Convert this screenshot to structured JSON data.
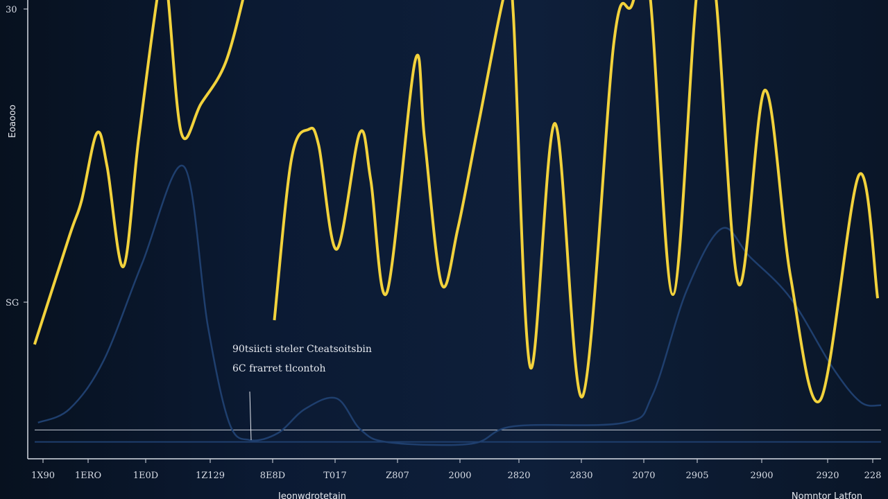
{
  "chart_data": {
    "type": "line",
    "title": "",
    "xlabel": "Jeonwdrotetain",
    "ylabel": "Eoaooo",
    "secondary_label": "Nomntor Latfon",
    "y_tick_labels": [
      "30",
      "SG"
    ],
    "x_tick_labels": [
      "1X90",
      "1ERO",
      "1E0D",
      "1Z129",
      "8E8D",
      "T017",
      "Z807",
      "2000",
      "2820",
      "2830",
      "2070",
      "2905",
      "2900",
      "2920",
      "228"
    ],
    "annotation": [
      "90tsiicti steler Cteatsoitsbin",
      "6C frarret tlcontoh"
    ],
    "xlim": [
      0,
      100
    ],
    "ylim": [
      0,
      100
    ],
    "grid": false,
    "colors": {
      "background": "#0a1628",
      "primary": "#f2d23c",
      "secondary": "#1f3f6e",
      "axis": "#d8dde6"
    },
    "series": [
      {
        "segments": [
          [
            [
              0.8,
              24.7
            ],
            [
              4.9,
              48.5
            ],
            [
              6.3,
              56.1
            ],
            [
              8.1,
              70.9
            ],
            [
              9.3,
              63.6
            ],
            [
              11.2,
              41.7
            ],
            [
              13,
              69.7
            ],
            [
              15.4,
              100
            ],
            [
              16.3,
              100
            ],
            [
              18,
              70.9
            ],
            [
              20.3,
              77.3
            ],
            [
              23.2,
              86.4
            ],
            [
              25.6,
              100
            ]
          ],
          [
            [
              28.9,
              30
            ],
            [
              30.9,
              65.2
            ],
            [
              32.9,
              71.7
            ],
            [
              34.1,
              68.2
            ],
            [
              36.2,
              45.5
            ],
            [
              38.9,
              70.9
            ],
            [
              40.2,
              60.6
            ],
            [
              42.1,
              36.1
            ],
            [
              45.4,
              86.7
            ],
            [
              46.5,
              69.7
            ],
            [
              48.5,
              37.9
            ],
            [
              50.4,
              50
            ],
            [
              52.8,
              72.7
            ],
            [
              56.1,
              100
            ],
            [
              56.9,
              97
            ],
            [
              58.9,
              19.7
            ],
            [
              61.8,
              73
            ],
            [
              65,
              13.3
            ],
            [
              68.7,
              90.9
            ],
            [
              70.7,
              98.5
            ],
            [
              72.8,
              100
            ],
            [
              75.6,
              35.6
            ],
            [
              78.5,
              100
            ],
            [
              80.5,
              100
            ],
            [
              83.3,
              37.9
            ],
            [
              86.4,
              80.3
            ],
            [
              89.4,
              39.4
            ],
            [
              92.9,
              12.6
            ],
            [
              97.4,
              61.7
            ],
            [
              99.6,
              34.8
            ]
          ]
        ]
      },
      {
        "segments": [
          [
            [
              1.2,
              7.6
            ],
            [
              4.9,
              10.6
            ],
            [
              8.9,
              21.2
            ],
            [
              13.4,
              42.4
            ],
            [
              18.3,
              63.6
            ],
            [
              21.1,
              28.8
            ],
            [
              23.6,
              7.6
            ],
            [
              26,
              3.8
            ],
            [
              29.3,
              5.3
            ],
            [
              32.5,
              10.6
            ],
            [
              36.2,
              12.9
            ],
            [
              39,
              6.1
            ],
            [
              42.3,
              3.3
            ],
            [
              52,
              3
            ],
            [
              56.9,
              6.8
            ],
            [
              69.9,
              7.6
            ],
            [
              73.2,
              13.6
            ],
            [
              77.2,
              36.4
            ],
            [
              81.3,
              50
            ],
            [
              84.6,
              43.9
            ],
            [
              89.4,
              34.8
            ],
            [
              94.3,
              19.7
            ],
            [
              97.6,
              12.1
            ],
            [
              100,
              11.4
            ]
          ]
        ]
      }
    ],
    "reference_lines": [
      6,
      4
    ]
  }
}
